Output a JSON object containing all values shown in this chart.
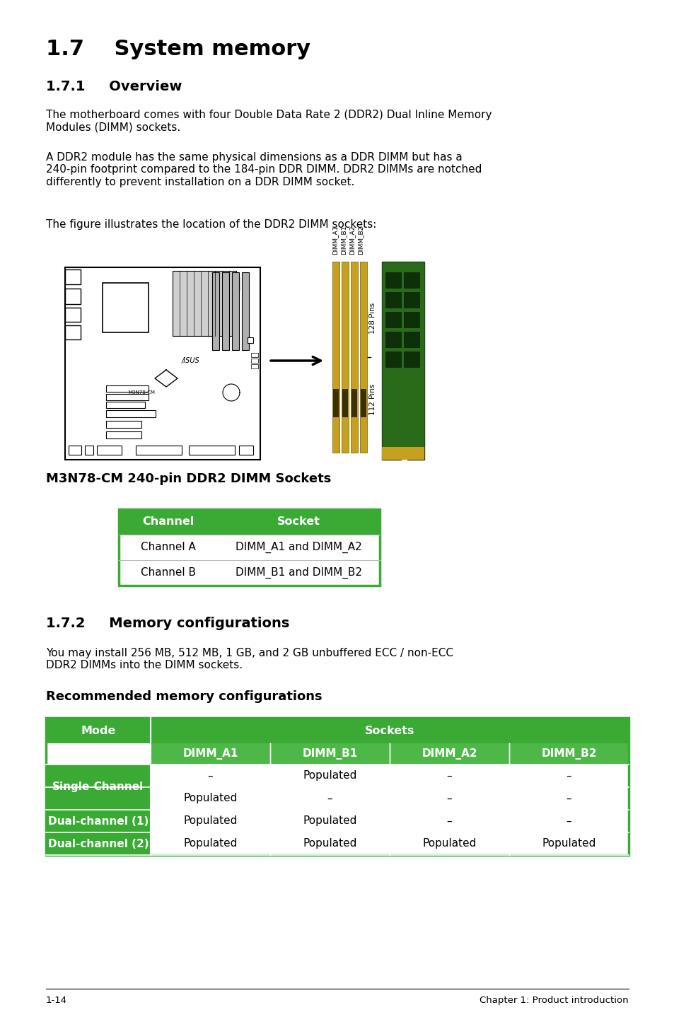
{
  "title_17": "1.7    System memory",
  "title_171": "1.7.1     Overview",
  "para1": "The motherboard comes with four Double Data Rate 2 (DDR2) Dual Inline Memory\nModules (DIMM) sockets.",
  "para2": "A DDR2 module has the same physical dimensions as a DDR DIMM but has a\n240-pin footprint compared to the 184-pin DDR DIMM. DDR2 DIMMs are notched\ndifferently to prevent installation on a DDR DIMM socket.",
  "para3": "The figure illustrates the location of the DDR2 DIMM sockets:",
  "fig_caption": "M3N78-CM 240-pin DDR2 DIMM Sockets",
  "table1_header": [
    "Channel",
    "Socket"
  ],
  "table1_rows": [
    [
      "Channel A",
      "DIMM_A1 and DIMM_A2"
    ],
    [
      "Channel B",
      "DIMM_B1 and DIMM_B2"
    ]
  ],
  "title_172": "1.7.2     Memory configurations",
  "para4": "You may install 256 MB, 512 MB, 1 GB, and 2 GB unbuffered ECC / non-ECC\nDDR2 DIMMs into the DIMM sockets.",
  "rec_title": "Recommended memory configurations",
  "table2_col_header1": "Mode",
  "table2_col_header2": "Sockets",
  "table2_sub_headers": [
    "DIMM_A1",
    "DIMM_B1",
    "DIMM_A2",
    "DIMM_B2"
  ],
  "table2_rows": [
    [
      "–",
      "Populated",
      "–",
      "–"
    ],
    [
      "Populated",
      "–",
      "–",
      "–"
    ],
    [
      "Populated",
      "Populated",
      "–",
      "–"
    ],
    [
      "Populated",
      "Populated",
      "Populated",
      "Populated"
    ]
  ],
  "table2_mode_labels": [
    "Single-Channel",
    "Single-Channel",
    "Dual-channel (1)",
    "Dual-channel (2)"
  ],
  "footer_left": "1-14",
  "footer_right": "Chapter 1: Product introduction",
  "green_color": "#3aaa35",
  "green_light": "#4db848",
  "bg_color": "#ffffff",
  "text_color": "#000000",
  "white": "#ffffff"
}
